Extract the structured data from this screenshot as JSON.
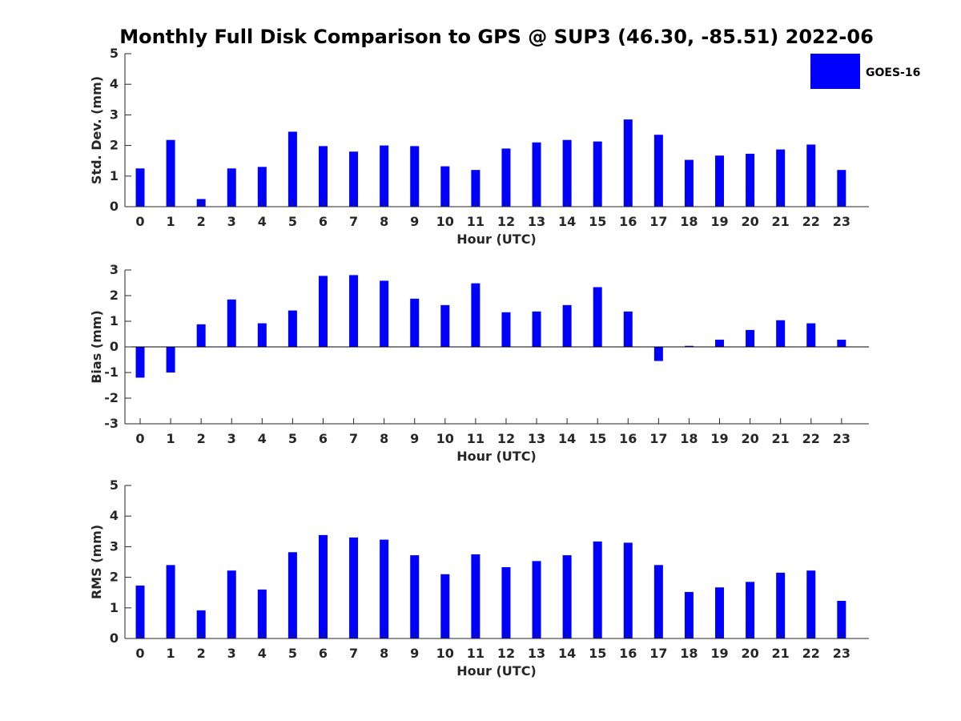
{
  "title": "Monthly Full Disk Comparison to GPS @ SUP3 (46.30, -85.51) 2022-06",
  "legend": {
    "label": "GOES-16",
    "placement": "top-right"
  },
  "colors": {
    "bar": "#0000ff",
    "axis": "#262626",
    "text": "#000000"
  },
  "chart_data": [
    {
      "type": "bar",
      "xlabel": "Hour (UTC)",
      "ylabel": "Std. Dev. (mm)",
      "ylim": [
        0,
        5
      ],
      "yticks": [
        0,
        1,
        2,
        3,
        4,
        5
      ],
      "categories": [
        "0",
        "1",
        "2",
        "3",
        "4",
        "5",
        "6",
        "7",
        "8",
        "9",
        "10",
        "11",
        "12",
        "13",
        "14",
        "15",
        "16",
        "17",
        "18",
        "19",
        "20",
        "21",
        "22",
        "23"
      ],
      "series": [
        {
          "name": "GOES-16",
          "values": [
            1.25,
            2.18,
            0.25,
            1.25,
            1.3,
            2.45,
            1.98,
            1.8,
            2.0,
            1.98,
            1.32,
            1.2,
            1.9,
            2.1,
            2.18,
            2.13,
            2.85,
            2.35,
            1.53,
            1.67,
            1.73,
            1.87,
            2.03,
            1.2
          ]
        }
      ],
      "grid": false
    },
    {
      "type": "bar",
      "xlabel": "Hour (UTC)",
      "ylabel": "Bias (mm)",
      "ylim": [
        -3,
        3
      ],
      "yticks": [
        -3,
        -2,
        -1,
        0,
        1,
        2,
        3
      ],
      "categories": [
        "0",
        "1",
        "2",
        "3",
        "4",
        "5",
        "6",
        "7",
        "8",
        "9",
        "10",
        "11",
        "12",
        "13",
        "14",
        "15",
        "16",
        "17",
        "18",
        "19",
        "20",
        "21",
        "22",
        "23"
      ],
      "series": [
        {
          "name": "GOES-16",
          "values": [
            -1.2,
            -1.0,
            0.88,
            1.85,
            0.92,
            1.42,
            2.77,
            2.8,
            2.58,
            1.88,
            1.63,
            2.48,
            1.35,
            1.38,
            1.63,
            2.33,
            1.38,
            -0.55,
            0.04,
            0.28,
            0.66,
            1.04,
            0.92,
            0.28
          ]
        }
      ],
      "zero_line": true,
      "grid": false
    },
    {
      "type": "bar",
      "xlabel": "Hour (UTC)",
      "ylabel": "RMS (mm)",
      "ylim": [
        0,
        5
      ],
      "yticks": [
        0,
        1,
        2,
        3,
        4,
        5
      ],
      "categories": [
        "0",
        "1",
        "2",
        "3",
        "4",
        "5",
        "6",
        "7",
        "8",
        "9",
        "10",
        "11",
        "12",
        "13",
        "14",
        "15",
        "16",
        "17",
        "18",
        "19",
        "20",
        "21",
        "22",
        "23"
      ],
      "series": [
        {
          "name": "GOES-16",
          "values": [
            1.73,
            2.4,
            0.92,
            2.22,
            1.6,
            2.82,
            3.38,
            3.3,
            3.23,
            2.72,
            2.1,
            2.75,
            2.33,
            2.53,
            2.72,
            3.17,
            3.13,
            2.4,
            1.52,
            1.67,
            1.85,
            2.15,
            2.22,
            1.23
          ]
        }
      ],
      "grid": false
    }
  ]
}
